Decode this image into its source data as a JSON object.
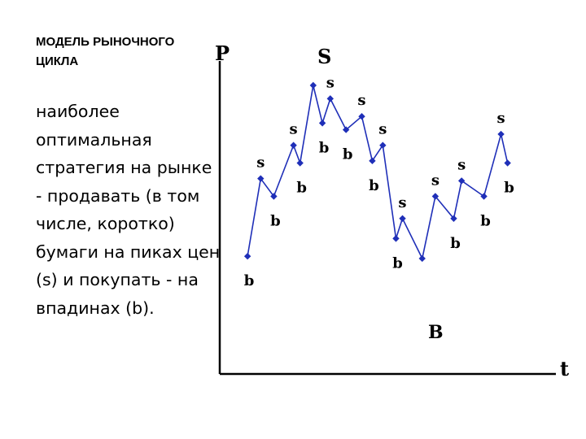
{
  "slide": {
    "title": "МОДЕЛЬ РЫНОЧНОГО ЦИКЛА",
    "body": "наиболее оптимальная стратегия на рынке - продавать (в том числе, коротко) бумаги на пиках цен (s) и покупать - на впадинах (b)."
  },
  "chart_data": {
    "type": "line",
    "title": "",
    "xlabel": "t",
    "ylabel": "P",
    "peak_label": "S",
    "trough_label": "B",
    "line_color": "#1f2fb8",
    "axis_color": "#000000",
    "grid": false,
    "legend": "none",
    "xlim": [
      0,
      22
    ],
    "ylim": [
      0,
      100
    ],
    "series": [
      {
        "name": "",
        "points": [
          {
            "x": 1,
            "y": 23,
            "label": "b"
          },
          {
            "x": 2,
            "y": 58,
            "label": "s"
          },
          {
            "x": 3,
            "y": 50,
            "label": "b"
          },
          {
            "x": 4.5,
            "y": 73,
            "label": "s"
          },
          {
            "x": 5,
            "y": 65,
            "label": "b"
          },
          {
            "x": 6,
            "y": 100,
            "label": ""
          },
          {
            "x": 6.7,
            "y": 83,
            "label": "b"
          },
          {
            "x": 7.3,
            "y": 94,
            "label": "s"
          },
          {
            "x": 8.5,
            "y": 80,
            "label": "b"
          },
          {
            "x": 9.7,
            "y": 86,
            "label": "s"
          },
          {
            "x": 10.5,
            "y": 66,
            "label": "b"
          },
          {
            "x": 11.3,
            "y": 73,
            "label": "s"
          },
          {
            "x": 12.3,
            "y": 31,
            "label": "b"
          },
          {
            "x": 12.8,
            "y": 40,
            "label": "s"
          },
          {
            "x": 14.3,
            "y": 22,
            "label": ""
          },
          {
            "x": 15.3,
            "y": 50,
            "label": "s"
          },
          {
            "x": 16.7,
            "y": 40,
            "label": "b"
          },
          {
            "x": 17.3,
            "y": 57,
            "label": "s"
          },
          {
            "x": 19,
            "y": 50,
            "label": "b"
          },
          {
            "x": 20.3,
            "y": 78,
            "label": "s"
          },
          {
            "x": 20.8,
            "y": 65,
            "label": "b"
          }
        ]
      }
    ]
  }
}
